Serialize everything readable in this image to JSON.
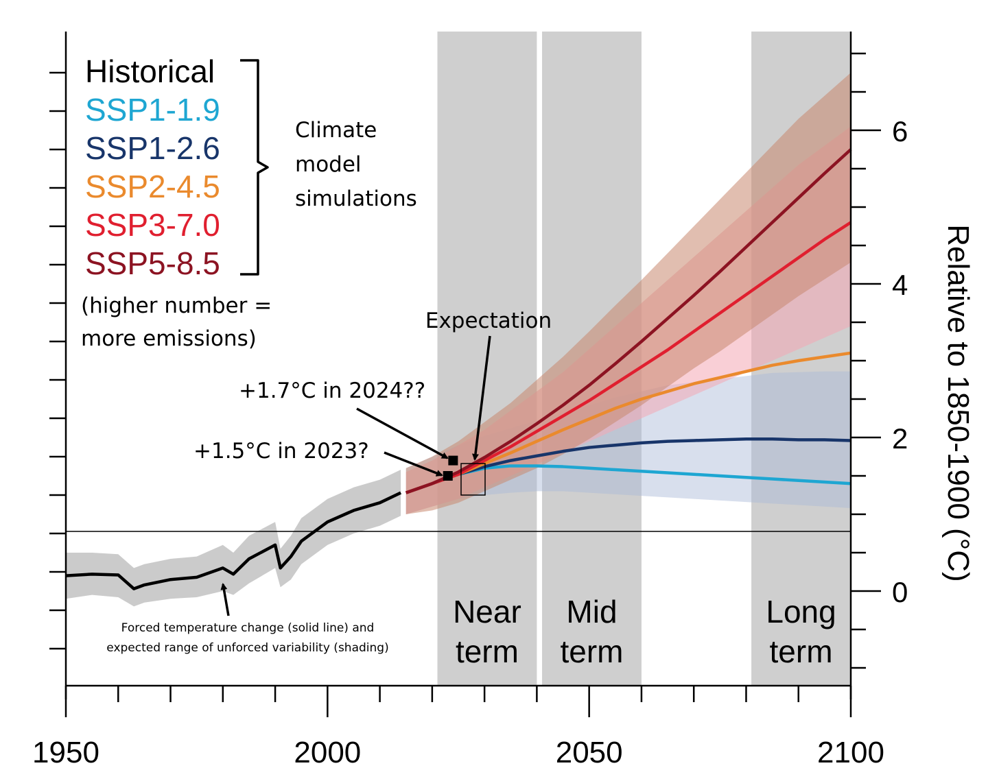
{
  "chart_data": {
    "type": "line",
    "title": "",
    "xlabel": "",
    "ylabel": "Relative to 1850-1900 (°C)",
    "xlim": [
      1950,
      2100
    ],
    "ylim": [
      -1.5,
      7.2
    ],
    "x_ticks": [
      "1950",
      "2000",
      "2050",
      "2100"
    ],
    "y_ticks": [
      "0",
      "2",
      "4",
      "6"
    ],
    "legend": {
      "placement": "top-left",
      "entries": [
        {
          "label": "Historical",
          "color": "#000000"
        },
        {
          "label": "SSP1-1.9",
          "color": "#1ea6d2"
        },
        {
          "label": "SSP1-2.6",
          "color": "#18356a"
        },
        {
          "label": "SSP2-4.5",
          "color": "#ea8a2d"
        },
        {
          "label": "SSP3-7.0",
          "color": "#e01f2f"
        },
        {
          "label": "SSP5-8.5",
          "color": "#8c1322"
        }
      ],
      "bracket_label": "Climate model simulations",
      "note": [
        "(higher number =",
        "more emissions)"
      ]
    },
    "periods": [
      {
        "name": "Near term",
        "lines": [
          "Near",
          "term"
        ],
        "range": [
          2021,
          2040
        ]
      },
      {
        "name": "Mid term",
        "lines": [
          "Mid",
          "term"
        ],
        "range": [
          2041,
          2060
        ]
      },
      {
        "name": "Long term",
        "lines": [
          "Long",
          "term"
        ],
        "range": [
          2081,
          2100
        ]
      }
    ],
    "series": [
      {
        "name": "Historical",
        "color": "#000000",
        "x": [
          1950,
          1955,
          1960,
          1963,
          1965,
          1970,
          1975,
          1980,
          1982,
          1985,
          1990,
          1991,
          1993,
          1995,
          2000,
          2005,
          2010,
          2014
        ],
        "y": [
          0.2,
          0.22,
          0.21,
          0.03,
          0.08,
          0.15,
          0.18,
          0.3,
          0.22,
          0.42,
          0.6,
          0.3,
          0.45,
          0.65,
          0.9,
          1.05,
          1.15,
          1.28
        ],
        "band_low": [
          -0.1,
          -0.05,
          -0.08,
          -0.2,
          -0.15,
          -0.1,
          -0.08,
          0.0,
          -0.05,
          0.1,
          0.3,
          0.05,
          0.15,
          0.35,
          0.6,
          0.75,
          0.85,
          0.98
        ],
        "band_high": [
          0.5,
          0.5,
          0.48,
          0.3,
          0.35,
          0.42,
          0.45,
          0.6,
          0.5,
          0.72,
          0.9,
          0.55,
          0.72,
          0.95,
          1.2,
          1.35,
          1.45,
          1.58
        ]
      },
      {
        "name": "SSP1-1.9",
        "color": "#1ea6d2",
        "x": [
          2015,
          2020,
          2025,
          2030,
          2035,
          2040,
          2045,
          2050,
          2055,
          2060,
          2065,
          2070,
          2075,
          2080,
          2085,
          2090,
          2095,
          2100
        ],
        "y": [
          1.28,
          1.4,
          1.52,
          1.6,
          1.63,
          1.63,
          1.62,
          1.6,
          1.58,
          1.56,
          1.54,
          1.52,
          1.5,
          1.48,
          1.46,
          1.44,
          1.42,
          1.4
        ]
      },
      {
        "name": "SSP1-2.6",
        "color": "#18356a",
        "x": [
          2015,
          2020,
          2025,
          2030,
          2035,
          2040,
          2045,
          2050,
          2055,
          2060,
          2065,
          2070,
          2075,
          2080,
          2085,
          2090,
          2095,
          2100
        ],
        "y": [
          1.28,
          1.4,
          1.52,
          1.62,
          1.7,
          1.76,
          1.82,
          1.87,
          1.9,
          1.93,
          1.95,
          1.96,
          1.97,
          1.98,
          1.98,
          1.97,
          1.97,
          1.96
        ],
        "band_low": [
          1.0,
          1.1,
          1.2,
          1.25,
          1.28,
          1.3,
          1.3,
          1.28,
          1.26,
          1.24,
          1.22,
          1.2,
          1.18,
          1.16,
          1.14,
          1.12,
          1.1,
          1.08
        ],
        "band_high": [
          1.6,
          1.75,
          1.9,
          2.02,
          2.12,
          2.22,
          2.32,
          2.42,
          2.52,
          2.6,
          2.68,
          2.72,
          2.76,
          2.8,
          2.84,
          2.85,
          2.86,
          2.86
        ]
      },
      {
        "name": "SSP2-4.5",
        "color": "#ea8a2d",
        "x": [
          2015,
          2020,
          2025,
          2030,
          2035,
          2040,
          2045,
          2050,
          2055,
          2060,
          2065,
          2070,
          2075,
          2080,
          2085,
          2090,
          2095,
          2100
        ],
        "y": [
          1.28,
          1.4,
          1.52,
          1.66,
          1.8,
          1.95,
          2.1,
          2.24,
          2.38,
          2.5,
          2.6,
          2.7,
          2.78,
          2.86,
          2.94,
          3.0,
          3.05,
          3.1
        ]
      },
      {
        "name": "SSP3-7.0",
        "color": "#e01f2f",
        "x": [
          2015,
          2020,
          2025,
          2030,
          2035,
          2040,
          2045,
          2050,
          2055,
          2060,
          2065,
          2070,
          2075,
          2080,
          2085,
          2090,
          2095,
          2100
        ],
        "y": [
          1.28,
          1.4,
          1.52,
          1.7,
          1.88,
          2.08,
          2.28,
          2.48,
          2.7,
          2.92,
          3.14,
          3.38,
          3.62,
          3.86,
          4.1,
          4.34,
          4.58,
          4.8
        ],
        "band_low": [
          1.0,
          1.1,
          1.2,
          1.35,
          1.5,
          1.65,
          1.8,
          1.95,
          2.1,
          2.25,
          2.4,
          2.55,
          2.7,
          2.85,
          3.0,
          3.15,
          3.3,
          3.45
        ],
        "band_high": [
          1.55,
          1.7,
          1.9,
          2.1,
          2.35,
          2.6,
          2.85,
          3.15,
          3.45,
          3.75,
          4.05,
          4.35,
          4.65,
          4.95,
          5.25,
          5.55,
          5.8,
          6.05
        ]
      },
      {
        "name": "SSP5-8.5",
        "color": "#8c1322",
        "x": [
          2015,
          2020,
          2025,
          2030,
          2035,
          2040,
          2045,
          2050,
          2055,
          2060,
          2065,
          2070,
          2075,
          2080,
          2085,
          2090,
          2095,
          2100
        ],
        "y": [
          1.28,
          1.4,
          1.55,
          1.74,
          1.95,
          2.18,
          2.42,
          2.68,
          2.96,
          3.25,
          3.55,
          3.85,
          4.16,
          4.48,
          4.8,
          5.12,
          5.44,
          5.75
        ],
        "band_low": [
          1.0,
          1.05,
          1.15,
          1.3,
          1.45,
          1.6,
          1.78,
          1.98,
          2.2,
          2.42,
          2.66,
          2.9,
          3.12,
          3.36,
          3.6,
          3.84,
          4.06,
          4.28
        ],
        "band_high": [
          1.6,
          1.75,
          1.95,
          2.2,
          2.45,
          2.75,
          3.05,
          3.38,
          3.72,
          4.05,
          4.4,
          4.75,
          5.1,
          5.45,
          5.8,
          6.15,
          6.45,
          6.75
        ]
      }
    ],
    "annotations": [
      {
        "text": "Expectation",
        "points_to": [
          2027,
          1.5
        ]
      },
      {
        "text": "+1.7°C in 2024??",
        "points_to": [
          2024,
          1.7
        ]
      },
      {
        "text": "+1.5°C in 2023?",
        "points_to": [
          2023,
          1.5
        ]
      },
      {
        "text": "Forced temperature change (solid line) and",
        "points_to": [
          1980,
          0.15
        ]
      },
      {
        "text": "expected range of unforced variability (shading)"
      }
    ],
    "markers": [
      {
        "label": "2023",
        "x": 2023,
        "y": 1.5
      },
      {
        "label": "2024",
        "x": 2024,
        "y": 1.7
      }
    ]
  }
}
